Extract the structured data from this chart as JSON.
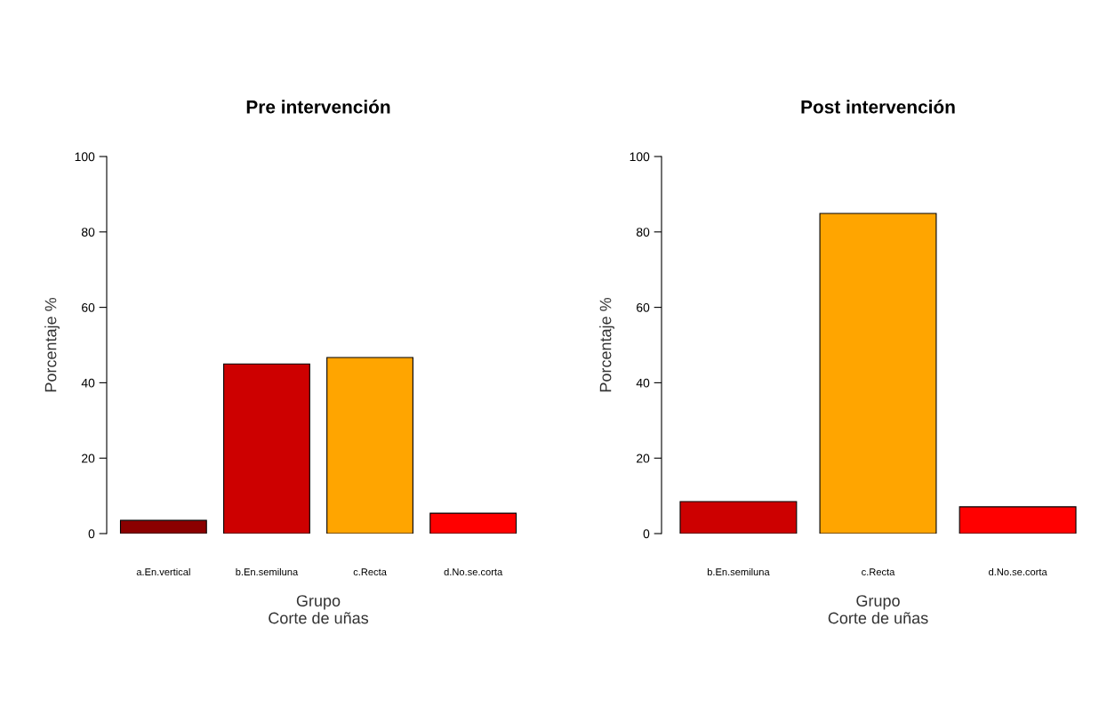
{
  "chart_data": [
    {
      "type": "bar",
      "title": "Pre intervención",
      "xlabel": "Grupo\nCorte de uñas",
      "ylabel": "Porcentaje %",
      "categories": [
        "a.En.vertical",
        "b.En.semiluna",
        "c.Recta",
        "d.No.se.corta"
      ],
      "values": [
        3.5,
        45,
        46.7,
        5.4
      ],
      "colors": [
        "#8b0000",
        "#cd0000",
        "#ffa500",
        "#ff0000"
      ],
      "ylim": [
        0,
        100
      ],
      "yticks": [
        0,
        20,
        40,
        60,
        80,
        100
      ],
      "grid": false,
      "legend": false
    },
    {
      "type": "bar",
      "title": "Post intervención",
      "xlabel": "Grupo\nCorte de uñas",
      "ylabel": "Porcentaje %",
      "categories": [
        "b.En.semiluna",
        "c.Recta",
        "d.No.se.corta"
      ],
      "values": [
        8.5,
        84.9,
        7.1
      ],
      "colors": [
        "#cd0000",
        "#ffa500",
        "#ff0000"
      ],
      "ylim": [
        0,
        100
      ],
      "yticks": [
        0,
        20,
        40,
        60,
        80,
        100
      ],
      "grid": false,
      "legend": false
    }
  ]
}
